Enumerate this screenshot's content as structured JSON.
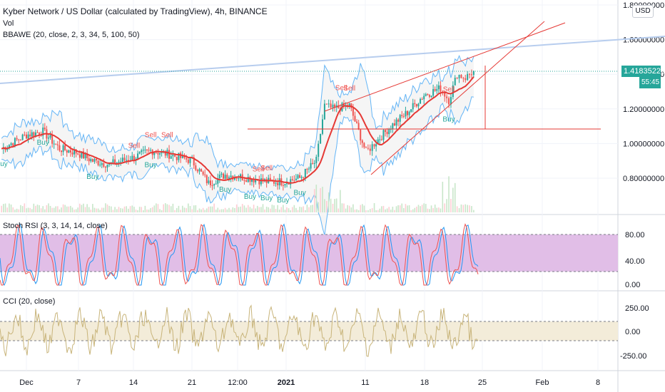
{
  "header": {
    "title": "Kyber Network / US Dollar (calculated by TradingView), 4h, BINANCE",
    "vol_label": "Vol",
    "indicator_label": "BBAWE (20, close, 2, 3, 34, 5, 100, 50)"
  },
  "scale": {
    "currency": "USD",
    "current_price": "1.41835226",
    "countdown": "55:45",
    "price_ticks": [
      "1.80000000",
      "1.60000000",
      "1.40000000",
      "1.20000000",
      "1.00000000",
      "0.80000000"
    ]
  },
  "stoch_rsi": {
    "label": "Stoch RSI (3, 3, 14, 14, close)",
    "ticks": [
      "80.00",
      "40.00",
      "0.00"
    ]
  },
  "cci": {
    "label": "CCI (20, close)",
    "ticks": [
      "250.00",
      "0.00",
      "-250.00"
    ]
  },
  "time_axis": {
    "ticks": [
      "Dec",
      "7",
      "14",
      "21",
      "12:00",
      "2021",
      "11",
      "18",
      "25",
      "Feb",
      "8"
    ]
  },
  "annotations": {
    "buy": "Buy",
    "sell": "Sell"
  },
  "chart_data": {
    "type": "line",
    "series": [
      {
        "name": "Kyber Network / US Dollar",
        "x": [
          "Nov 28",
          "Dec 1",
          "Dec 3",
          "Dec 5",
          "Dec 7",
          "Dec 9",
          "Dec 11",
          "Dec 14",
          "Dec 16",
          "Dec 18",
          "Dec 21",
          "Dec 23",
          "Dec 25",
          "Dec 28",
          "Dec 30",
          "Jan 1",
          "Jan 3",
          "Jan 5",
          "Jan 6",
          "Jan 7",
          "Jan 9",
          "Jan 11",
          "Jan 12",
          "Jan 14",
          "Jan 16",
          "Jan 18",
          "Jan 20",
          "Jan 21",
          "Jan 22",
          "Jan 23",
          "Jan 24"
        ],
        "values": [
          0.97,
          1.05,
          1.07,
          0.97,
          0.95,
          0.9,
          0.88,
          0.92,
          0.96,
          0.94,
          0.9,
          0.77,
          0.82,
          0.8,
          0.78,
          0.78,
          0.8,
          0.9,
          1.22,
          1.2,
          1.22,
          0.95,
          1.0,
          1.1,
          1.18,
          1.28,
          1.32,
          1.25,
          1.4,
          1.38,
          1.42
        ]
      }
    ],
    "y_range": [
      0.65,
      1.82
    ],
    "y_scale": "linear",
    "annotations": [
      {
        "text": "Buy",
        "x": "Nov 28"
      },
      {
        "text": "Buy",
        "x": "Dec 3"
      },
      {
        "text": "Buy",
        "x": "Dec 9"
      },
      {
        "text": "Sell",
        "x": "Dec 14"
      },
      {
        "text": "Sell",
        "x": "Dec 16"
      },
      {
        "text": "Sell",
        "x": "Dec 18"
      },
      {
        "text": "Buy",
        "x": "Dec 16"
      },
      {
        "text": "Buy",
        "x": "Dec 25"
      },
      {
        "text": "Buy",
        "x": "Dec 28"
      },
      {
        "text": "Sell",
        "x": "Dec 29"
      },
      {
        "text": "Sell",
        "x": "Dec 30"
      },
      {
        "text": "Buy",
        "x": "Dec 30"
      },
      {
        "text": "Buy",
        "x": "Jan 1"
      },
      {
        "text": "Buy",
        "x": "Jan 3"
      },
      {
        "text": "Sell",
        "x": "Jan 8"
      },
      {
        "text": "Sell",
        "x": "Jan 9"
      },
      {
        "text": "Sell",
        "x": "Jan 21"
      },
      {
        "text": "Buy",
        "x": "Jan 21"
      }
    ],
    "grid": true,
    "colors": {
      "candle_up": "#26a69a",
      "candle_down": "#ef5350",
      "basis": "#e53935",
      "band": "#64b5f6",
      "fill": "#f5f5f5",
      "stoch_fill": "#e1bee7",
      "cci_fill": "#f3ecd9",
      "cci_line": "#c8b47a",
      "long_trend": "#b7cdee",
      "drawing": "#e53935",
      "price_line": "#26a69a"
    }
  }
}
